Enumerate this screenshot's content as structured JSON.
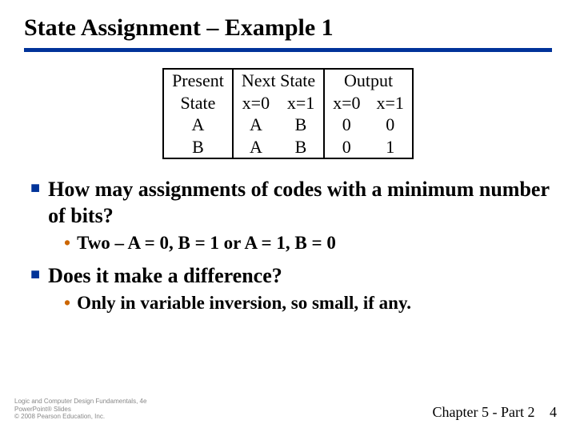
{
  "title": "State Assignment – Example 1",
  "table": {
    "border_color": "#000000",
    "font_size": 22,
    "headers": {
      "present": [
        "Present",
        "State"
      ],
      "next": "Next State",
      "next_sub": [
        "x=0",
        "x=1"
      ],
      "output": "Output",
      "output_sub": [
        "x=0",
        "x=1"
      ]
    },
    "rows": [
      {
        "present": "A",
        "next": [
          "A",
          "B"
        ],
        "output": [
          "0",
          "0"
        ]
      },
      {
        "present": "B",
        "next": [
          "A",
          "B"
        ],
        "output": [
          "0",
          "1"
        ]
      }
    ]
  },
  "bullets": [
    {
      "level": 1,
      "text": "How may assignments of codes with a minimum number of bits?",
      "children": [
        {
          "level": 2,
          "text": "Two – A = 0, B = 1 or A = 1, B = 0"
        }
      ]
    },
    {
      "level": 1,
      "text": "Does it make a difference?",
      "children": [
        {
          "level": 2,
          "text": "Only in variable inversion, so small, if any."
        }
      ]
    }
  ],
  "footer": {
    "left": [
      "Logic and Computer Design Fundamentals, 4e",
      "PowerPoint® Slides",
      "© 2008 Pearson Education, Inc."
    ],
    "chapter": "Chapter 5 - Part 2",
    "page": "4"
  },
  "colors": {
    "title_rule": "#003399",
    "lvl1_marker": "#003399",
    "lvl2_marker": "#cc6600",
    "background": "#ffffff"
  }
}
